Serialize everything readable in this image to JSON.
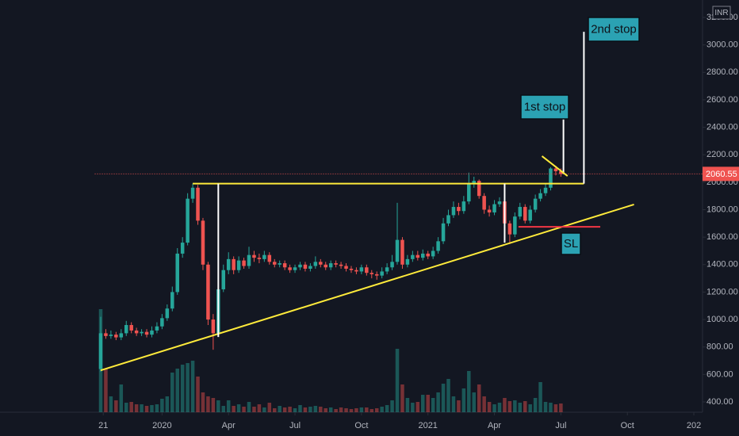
{
  "chart_data": {
    "type": "candlestick",
    "currency": "INR",
    "x": [
      0,
      1,
      2,
      3,
      4,
      5,
      6,
      7,
      8,
      9,
      10,
      11,
      12,
      13,
      14,
      15,
      16,
      17,
      18,
      19,
      20,
      21,
      22,
      23,
      24,
      25,
      26,
      27,
      28,
      29,
      30,
      31,
      32,
      33,
      34,
      35,
      36,
      37,
      38,
      39,
      40,
      41,
      42,
      43,
      44,
      45,
      46,
      47,
      48,
      49,
      50,
      51,
      52,
      53,
      54,
      55,
      56,
      57,
      58,
      59,
      60,
      61,
      62,
      63,
      64,
      65,
      66,
      67,
      68,
      69,
      70,
      71,
      72,
      73,
      74,
      75,
      76,
      77,
      78,
      79,
      80,
      81,
      82,
      83,
      84,
      85,
      86,
      87,
      88,
      89,
      90
    ],
    "open": [
      640,
      900,
      880,
      890,
      870,
      900,
      960,
      920,
      900,
      910,
      890,
      920,
      950,
      1010,
      1080,
      1200,
      1480,
      1560,
      1880,
      1960,
      1720,
      1400,
      1000,
      900,
      1220,
      1360,
      1440,
      1360,
      1430,
      1390,
      1470,
      1450,
      1440,
      1470,
      1420,
      1400,
      1410,
      1380,
      1360,
      1380,
      1400,
      1370,
      1390,
      1420,
      1400,
      1380,
      1410,
      1400,
      1390,
      1370,
      1360,
      1350,
      1380,
      1340,
      1330,
      1320,
      1350,
      1380,
      1420,
      1580,
      1400,
      1440,
      1470,
      1450,
      1480,
      1460,
      1500,
      1570,
      1700,
      1760,
      1820,
      1790,
      1860,
      1990,
      2010,
      1900,
      1800,
      1780,
      1840,
      1860,
      1700,
      1620,
      1750,
      1820,
      1720,
      1800,
      1880,
      1920,
      1960,
      2100,
      2080
    ],
    "high": [
      1020,
      930,
      920,
      910,
      930,
      990,
      980,
      940,
      930,
      930,
      950,
      980,
      1040,
      1110,
      1240,
      1520,
      1600,
      1920,
      1990,
      1980,
      1740,
      1420,
      1040,
      1260,
      1400,
      1490,
      1460,
      1460,
      1450,
      1530,
      1500,
      1480,
      1500,
      1490,
      1440,
      1430,
      1430,
      1400,
      1400,
      1420,
      1420,
      1410,
      1460,
      1440,
      1420,
      1430,
      1430,
      1420,
      1410,
      1390,
      1380,
      1400,
      1400,
      1360,
      1350,
      1380,
      1410,
      1470,
      1850,
      1600,
      1470,
      1500,
      1500,
      1510,
      1500,
      1530,
      1600,
      1740,
      1800,
      1860,
      1850,
      1900,
      2070,
      2040,
      2020,
      1920,
      1830,
      1870,
      1890,
      1880,
      1720,
      1780,
      1850,
      1840,
      1830,
      1910,
      1950,
      1990,
      2110,
      2120,
      2100
    ],
    "low": [
      620,
      860,
      860,
      850,
      850,
      880,
      900,
      880,
      880,
      870,
      870,
      900,
      930,
      990,
      1060,
      1180,
      1450,
      1540,
      1850,
      1690,
      1360,
      960,
      780,
      880,
      1200,
      1330,
      1330,
      1340,
      1370,
      1370,
      1420,
      1410,
      1420,
      1400,
      1380,
      1380,
      1360,
      1340,
      1340,
      1360,
      1350,
      1350,
      1370,
      1380,
      1360,
      1360,
      1380,
      1370,
      1350,
      1340,
      1330,
      1330,
      1320,
      1300,
      1290,
      1300,
      1330,
      1360,
      1400,
      1370,
      1380,
      1420,
      1430,
      1430,
      1440,
      1440,
      1480,
      1550,
      1680,
      1740,
      1760,
      1770,
      1840,
      1960,
      1880,
      1770,
      1750,
      1760,
      1820,
      1680,
      1550,
      1600,
      1730,
      1700,
      1700,
      1780,
      1860,
      1900,
      1940,
      2050,
      2040
    ],
    "close": [
      900,
      880,
      890,
      870,
      900,
      960,
      920,
      900,
      910,
      890,
      920,
      950,
      1010,
      1080,
      1200,
      1480,
      1560,
      1880,
      1960,
      1720,
      1400,
      1000,
      900,
      1220,
      1360,
      1440,
      1360,
      1430,
      1390,
      1470,
      1450,
      1440,
      1470,
      1420,
      1400,
      1410,
      1380,
      1360,
      1380,
      1400,
      1370,
      1390,
      1420,
      1400,
      1380,
      1410,
      1400,
      1390,
      1370,
      1360,
      1350,
      1380,
      1340,
      1330,
      1320,
      1350,
      1380,
      1420,
      1580,
      1400,
      1440,
      1470,
      1450,
      1480,
      1460,
      1500,
      1570,
      1700,
      1760,
      1820,
      1790,
      1860,
      1990,
      2010,
      1900,
      1800,
      1780,
      1840,
      1860,
      1700,
      1620,
      1750,
      1820,
      1720,
      1800,
      1880,
      1920,
      1960,
      2100,
      2080,
      2060.55
    ],
    "volume": [
      13,
      5.5,
      2,
      1.5,
      3.5,
      1.2,
      1.3,
      1,
      1,
      0.8,
      0.9,
      1,
      1.7,
      2,
      5,
      5.5,
      6,
      6.2,
      6.5,
      4.5,
      2.5,
      2,
      1.8,
      1.5,
      0.8,
      1.5,
      0.8,
      1,
      0.7,
      1.3,
      0.7,
      1,
      0.6,
      1.2,
      0.5,
      0.8,
      0.6,
      0.7,
      0.5,
      0.9,
      0.6,
      0.7,
      0.8,
      0.7,
      0.5,
      0.6,
      0.4,
      0.6,
      0.5,
      0.4,
      0.5,
      0.6,
      0.6,
      0.4,
      0.5,
      0.7,
      0.9,
      1.5,
      8,
      3.5,
      1.8,
      1.2,
      1.3,
      2.2,
      2.2,
      1.8,
      2.5,
      3.6,
      4.2,
      2,
      1.5,
      3,
      5.2,
      2.5,
      3.5,
      2,
      1.3,
      1,
      1.2,
      1.8,
      1.4,
      1.5,
      1.2,
      1.4,
      1,
      1.8,
      3.8,
      1.3,
      1.2,
      1,
      1.1
    ],
    "up_color": "#26a69a",
    "down_color": "#ef5350",
    "xlim": [
      -1,
      117.7
    ],
    "ylim": [
      325,
      3327
    ],
    "xticks": [
      {
        "value": 0.5,
        "label": "21"
      },
      {
        "value": 12,
        "label": "2020"
      },
      {
        "value": 25,
        "label": "Apr"
      },
      {
        "value": 38,
        "label": "Jul"
      },
      {
        "value": 51,
        "label": "Oct"
      },
      {
        "value": 64,
        "label": "2021"
      },
      {
        "value": 77,
        "label": "Apr"
      },
      {
        "value": 90,
        "label": "Jul"
      },
      {
        "value": 103,
        "label": "Oct"
      },
      {
        "value": 116,
        "label": "202"
      }
    ],
    "yticks": [
      {
        "value": 400,
        "label": "400.00"
      },
      {
        "value": 600,
        "label": "600.00"
      },
      {
        "value": 800,
        "label": "800.00"
      },
      {
        "value": 1000,
        "label": "1000.00"
      },
      {
        "value": 1200,
        "label": "1200.00"
      },
      {
        "value": 1400,
        "label": "1400.00"
      },
      {
        "value": 1600,
        "label": "1600.00"
      },
      {
        "value": 1800,
        "label": "1800.00"
      },
      {
        "value": 2000,
        "label": "2000.00"
      },
      {
        "value": 2200,
        "label": "2200.00"
      },
      {
        "value": 2400,
        "label": "2400.00"
      },
      {
        "value": 2600,
        "label": "2600.00"
      },
      {
        "value": 2800,
        "label": "2800.00"
      },
      {
        "value": 3000,
        "label": "3000.00"
      },
      {
        "value": 3200,
        "label": "3200.00"
      }
    ],
    "drawings": [
      {
        "color": "#ffeb3b",
        "x": [
          18,
          94.5
        ],
        "y": [
          1990,
          1990
        ]
      },
      {
        "color": "#ffeb3b",
        "x": [
          0,
          104.3
        ],
        "y": [
          630,
          1838
        ]
      },
      {
        "color": "#ffffff",
        "x": [
          23,
          23
        ],
        "y": [
          1990,
          873
        ]
      },
      {
        "color": "#ffffff",
        "x": [
          79,
          79
        ],
        "y": [
          1990,
          1560
        ]
      },
      {
        "color": "#ffffff",
        "x": [
          90.5,
          90.5
        ],
        "y": [
          2060,
          2460
        ]
      },
      {
        "color": "#ffffff",
        "x": [
          94.5,
          94.5
        ],
        "y": [
          1990,
          3095
        ]
      },
      {
        "color": "#ffeb3b",
        "x": [
          86.3,
          91.3
        ],
        "y": [
          2190,
          2045
        ]
      },
      {
        "color": "#f23645",
        "x": [
          81.7,
          97.7
        ],
        "y": [
          1675,
          1675
        ]
      }
    ],
    "annotations": [
      {
        "text": "2nd stop"
      },
      {
        "text": "1st stop"
      },
      {
        "text": "SL"
      }
    ]
  }
}
